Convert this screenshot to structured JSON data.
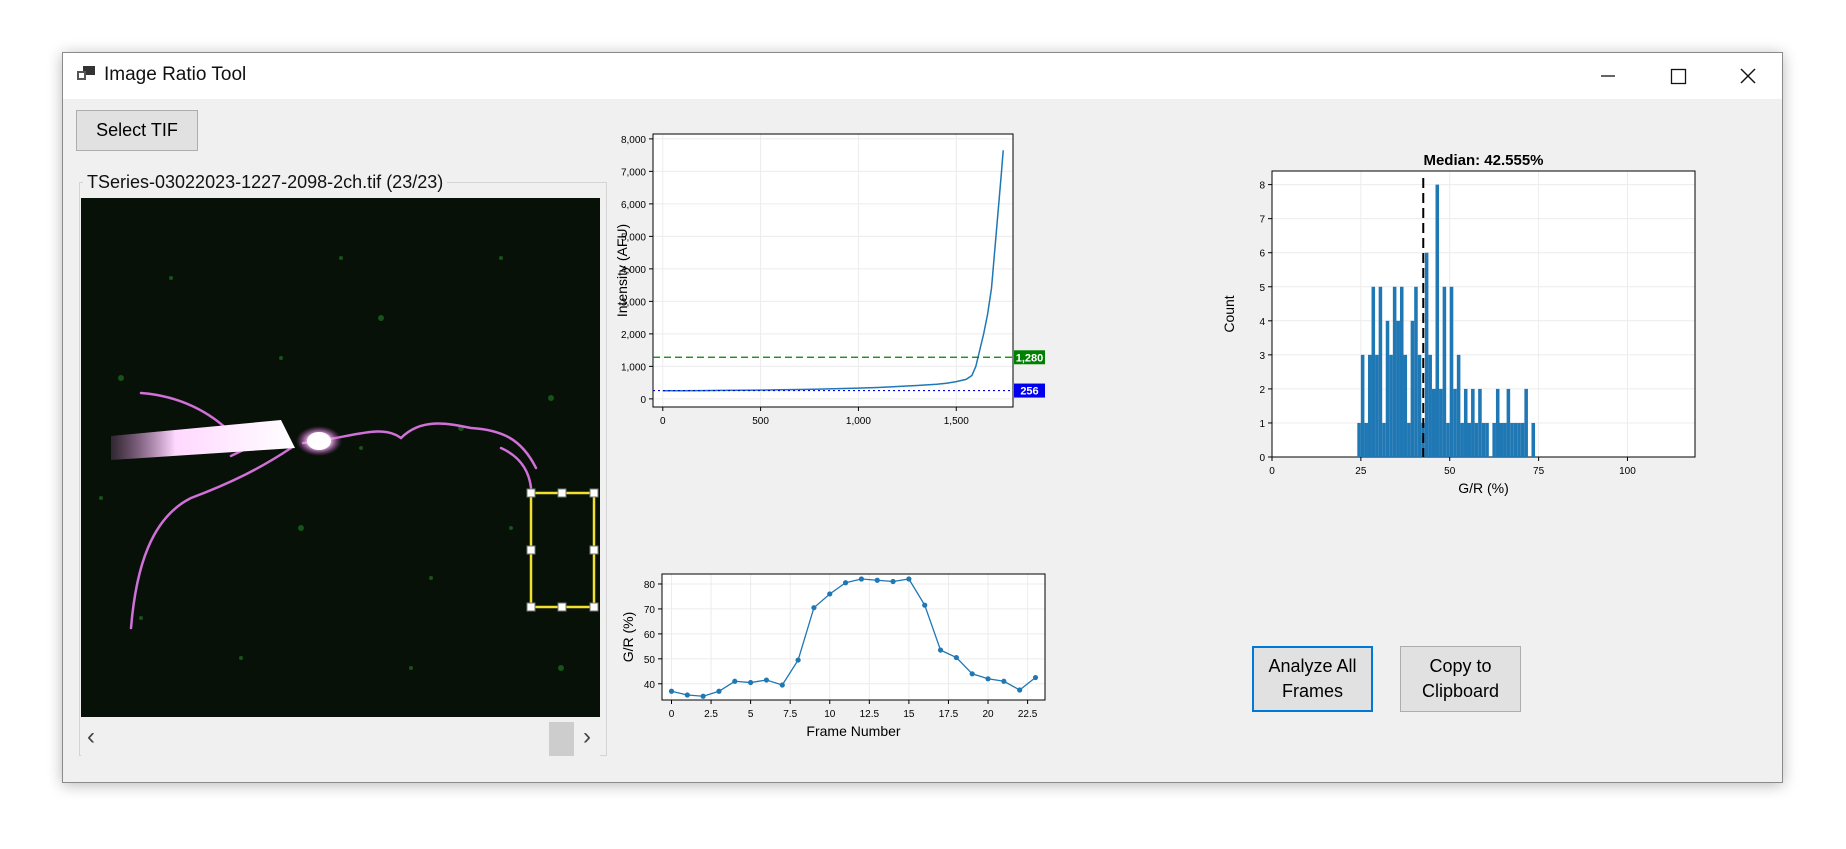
{
  "window": {
    "title": "Image Ratio Tool",
    "controls": {
      "minimize": "—",
      "maximize": "☐",
      "close": "✕"
    }
  },
  "toolbar": {
    "select_tif_label": "Select TIF"
  },
  "image_panel": {
    "group_label": "TSeries-03022023-1227-2098-2ch.tif (23/23)",
    "scroll_left": "‹",
    "scroll_right": "›"
  },
  "buttons": {
    "analyze_line1": "Analyze All",
    "analyze_line2": "Frames",
    "copy_line1": "Copy to",
    "copy_line2": "Clipboard"
  },
  "colors": {
    "series": "#1f77b4",
    "threshold_green": "#008000",
    "threshold_blue": "#0000ee",
    "window_bg": "#f0f0f0",
    "accent": "#0078d7"
  },
  "chart_data": [
    {
      "id": "intensity",
      "type": "line",
      "title": "",
      "xlabel": "",
      "ylabel": "Intensity (AFU)",
      "xlim": [
        -50,
        1790
      ],
      "ylim": [
        -250,
        8150
      ],
      "x_ticks": [
        0,
        500,
        1000,
        1500
      ],
      "x_tick_labels": [
        "0",
        "500",
        "1,000",
        "1,500"
      ],
      "y_ticks": [
        0,
        1000,
        2000,
        3000,
        4000,
        5000,
        6000,
        7000,
        8000
      ],
      "y_tick_labels": [
        "0",
        "1,000",
        "2,000",
        "3,000",
        "4,000",
        "5,000",
        "6,000",
        "7,000",
        "8,000"
      ],
      "grid": true,
      "series": [
        {
          "x": [
            0,
            100,
            200,
            300,
            400,
            500,
            600,
            700,
            800,
            900,
            1000,
            1100,
            1200,
            1300,
            1400,
            1450,
            1500,
            1550,
            1580,
            1600,
            1620,
            1640,
            1660,
            1680,
            1700,
            1710,
            1720,
            1730,
            1740
          ],
          "y": [
            250,
            250,
            255,
            260,
            265,
            270,
            280,
            290,
            300,
            315,
            330,
            350,
            380,
            410,
            450,
            480,
            530,
            600,
            720,
            1000,
            1500,
            2000,
            2600,
            3400,
            4800,
            5500,
            6200,
            6900,
            7650
          ]
        }
      ],
      "thresholds": [
        {
          "value": 1280,
          "label": "1,280",
          "style": "dashed",
          "color": "#008000"
        },
        {
          "value": 256,
          "label": "256",
          "style": "dotted",
          "color": "#0000ee"
        }
      ]
    },
    {
      "id": "ratio-timeseries",
      "type": "line",
      "title": "",
      "xlabel": "Frame Number",
      "ylabel": "G/R (%)",
      "xlim": [
        -0.6,
        23.6
      ],
      "ylim": [
        33.5,
        84
      ],
      "x_ticks": [
        0,
        2.5,
        5,
        7.5,
        10,
        12.5,
        15,
        17.5,
        20,
        22.5
      ],
      "x_tick_labels": [
        "0",
        "2.5",
        "5",
        "7.5",
        "10",
        "12.5",
        "15",
        "17.5",
        "20",
        "22.5"
      ],
      "y_ticks": [
        40,
        50,
        60,
        70,
        80
      ],
      "y_tick_labels": [
        "40",
        "50",
        "60",
        "70",
        "80"
      ],
      "grid": true,
      "series": [
        {
          "x": [
            0,
            1,
            2,
            3,
            4,
            5,
            6,
            7,
            8,
            9,
            10,
            11,
            12,
            13,
            14,
            15,
            16,
            17,
            18,
            19,
            20,
            21,
            22,
            23
          ],
          "y": [
            37,
            35.5,
            35,
            37,
            41,
            40.5,
            41.5,
            39.5,
            49.5,
            70.5,
            76,
            80.5,
            82,
            81.5,
            81,
            82,
            71.5,
            53.5,
            50.5,
            44,
            42,
            41,
            37.5,
            42.5
          ]
        }
      ]
    },
    {
      "id": "histogram",
      "type": "bar",
      "title": "Median: 42.555%",
      "xlabel": "G/R (%)",
      "ylabel": "Count",
      "xlim": [
        0,
        119
      ],
      "ylim": [
        0,
        8.4
      ],
      "x_ticks": [
        0,
        25,
        50,
        75,
        100
      ],
      "x_tick_labels": [
        "0",
        "25",
        "50",
        "75",
        "100"
      ],
      "y_ticks": [
        0,
        1,
        2,
        3,
        4,
        5,
        6,
        7,
        8
      ],
      "y_tick_labels": [
        "0",
        "1",
        "2",
        "3",
        "4",
        "5",
        "6",
        "7",
        "8"
      ],
      "grid": true,
      "bin_width": 1,
      "bins": [
        [
          24,
          1
        ],
        [
          25,
          3
        ],
        [
          26,
          1
        ],
        [
          27,
          3
        ],
        [
          28,
          5
        ],
        [
          29,
          3
        ],
        [
          30,
          5
        ],
        [
          31,
          1
        ],
        [
          32,
          4
        ],
        [
          33,
          3
        ],
        [
          34,
          5
        ],
        [
          35,
          4
        ],
        [
          36,
          5
        ],
        [
          37,
          3
        ],
        [
          38,
          1
        ],
        [
          39,
          4
        ],
        [
          40,
          5
        ],
        [
          41,
          3
        ],
        [
          42,
          1
        ],
        [
          43,
          6
        ],
        [
          44,
          3
        ],
        [
          45,
          2
        ],
        [
          46,
          8
        ],
        [
          47,
          2
        ],
        [
          48,
          5
        ],
        [
          49,
          1
        ],
        [
          50,
          5
        ],
        [
          51,
          2
        ],
        [
          52,
          3
        ],
        [
          53,
          1
        ],
        [
          54,
          2
        ],
        [
          55,
          1
        ],
        [
          56,
          2
        ],
        [
          57,
          1
        ],
        [
          58,
          2
        ],
        [
          59,
          1
        ],
        [
          60,
          1
        ],
        [
          62,
          1
        ],
        [
          63,
          2
        ],
        [
          64,
          1
        ],
        [
          65,
          1
        ],
        [
          66,
          2
        ],
        [
          67,
          1
        ],
        [
          68,
          1
        ],
        [
          69,
          1
        ],
        [
          70,
          1
        ],
        [
          71,
          2
        ],
        [
          73,
          1
        ]
      ],
      "median": 42.555
    }
  ]
}
